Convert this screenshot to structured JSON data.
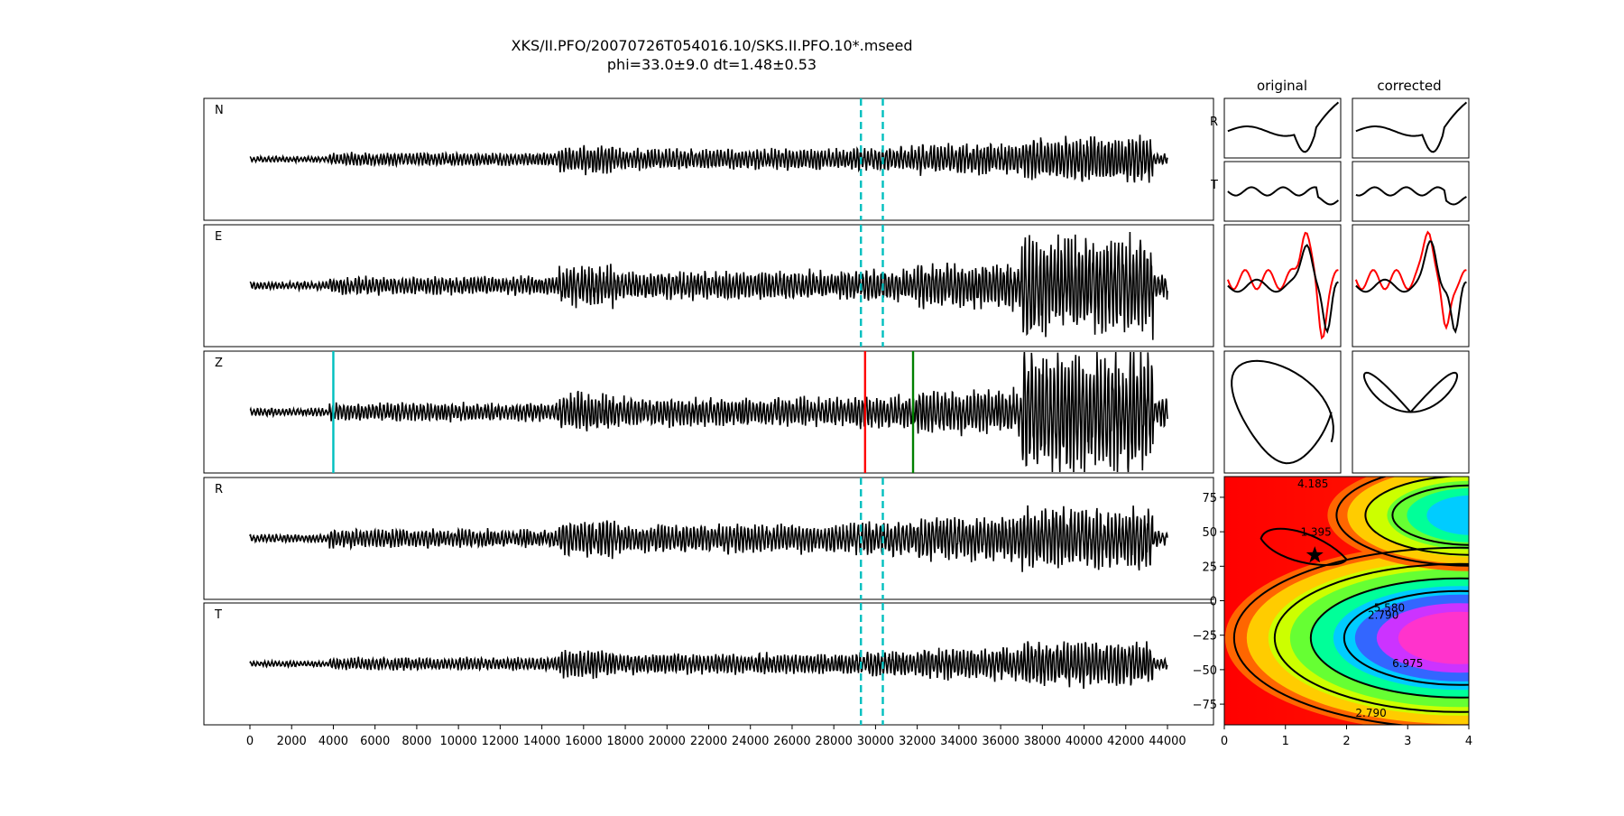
{
  "title": {
    "line1": "XKS/II.PFO/20070726T054016.10/SKS.II.PFO.10*.mseed",
    "line2": "phi=33.0±9.0 dt=1.48±0.53"
  },
  "chart_data": [
    {
      "type": "line",
      "name": "waveforms",
      "panels": [
        "N",
        "E",
        "Z",
        "R",
        "T"
      ],
      "x_range": [
        0,
        44000
      ],
      "xticks": [
        "0",
        "2000",
        "4000",
        "6000",
        "8000",
        "10000",
        "12000",
        "14000",
        "16000",
        "18000",
        "20000",
        "22000",
        "24000",
        "26000",
        "28000",
        "30000",
        "32000",
        "34000",
        "36000",
        "38000",
        "40000",
        "42000",
        "44000"
      ],
      "x_tick_values": [
        0,
        2000,
        4000,
        6000,
        8000,
        10000,
        12000,
        14000,
        16000,
        18000,
        20000,
        22000,
        24000,
        26000,
        28000,
        30000,
        32000,
        34000,
        36000,
        38000,
        40000,
        42000,
        44000
      ],
      "window_lines": {
        "color": "#00bfbf",
        "style": "dashed",
        "x": [
          29300,
          30350
        ],
        "panels": [
          "N",
          "E",
          "R",
          "T"
        ]
      },
      "markers_z": [
        {
          "x": 4000,
          "color": "#00bfbf"
        },
        {
          "x": 29500,
          "color": "#ff0000"
        },
        {
          "x": 31800,
          "color": "#008000"
        }
      ],
      "grid": false
    },
    {
      "type": "line",
      "name": "particle-motion",
      "columns": [
        "original",
        "corrected"
      ],
      "rows": [
        "R",
        "T",
        "",
        ""
      ],
      "series_colors": [
        "#000000",
        "#ff0000"
      ]
    },
    {
      "type": "heatmap",
      "name": "energy-grid",
      "x_range": [
        0,
        4
      ],
      "y_range": [
        -90,
        90
      ],
      "xticks": [
        "0",
        "1",
        "2",
        "3",
        "4"
      ],
      "x_tick_values": [
        0,
        1,
        2,
        3,
        4
      ],
      "yticks": [
        "75",
        "50",
        "25",
        "0",
        "−25",
        "−50",
        "−75"
      ],
      "y_tick_values": [
        75,
        50,
        25,
        0,
        -25,
        -50,
        -75
      ],
      "contour_labels": [
        "1.395",
        "2.790",
        "4.185",
        "5.580",
        "6.975"
      ],
      "best": {
        "dt": 1.48,
        "phi": 33.0
      },
      "colormap": "gist_rainbow"
    }
  ],
  "colors": {
    "trace": "#000000",
    "window": "#00bfbf",
    "red": "#ff0000",
    "green": "#008000"
  }
}
